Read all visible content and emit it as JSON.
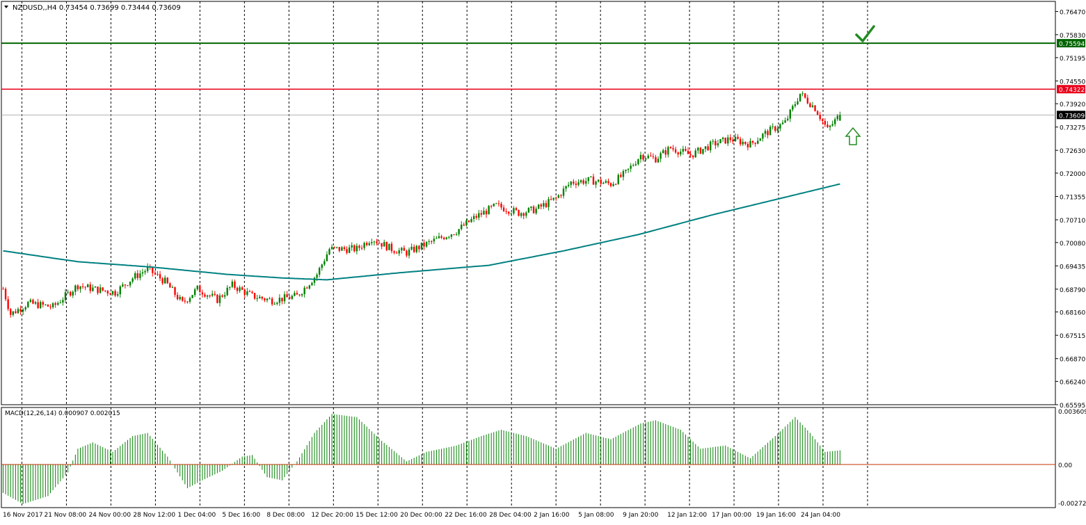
{
  "header": {
    "symbol_line": "NZDUSD,,H4  0.73454 0.73699 0.73444 0.73609"
  },
  "macd": {
    "label": "MACD(12,26,14) 0.000907 0.002015"
  },
  "colors": {
    "bull": "#008000",
    "bear": "#ff0000",
    "ma": "#008080",
    "resistance": "#e8001a",
    "target": "#006400",
    "grid": "#000000",
    "annotation": "#228b22"
  },
  "annotations": {
    "check_icon": "checkmark-icon",
    "arrow_icon": "up-arrow-icon"
  },
  "chart_data": [
    {
      "type": "candlestick",
      "symbol": "NZDUSD",
      "timeframe": "H4",
      "title": "NZDUSD,,H4",
      "ohlc_last": {
        "open": 0.73454,
        "high": 0.73699,
        "low": 0.73444,
        "close": 0.73609
      },
      "ylim": [
        0.65595,
        0.7675
      ],
      "y_ticks": [
        "0.76470",
        "0.75830",
        "0.75195",
        "0.74550",
        "0.73920",
        "0.73275",
        "0.72630",
        "0.72000",
        "0.71355",
        "0.70710",
        "0.70080",
        "0.69435",
        "0.68790",
        "0.68160",
        "0.67515",
        "0.66870",
        "0.66240",
        "0.65595"
      ],
      "x_labels": [
        "16 Nov 2017",
        "21 Nov 08:00",
        "24 Nov 00:00",
        "28 Nov 12:00",
        "1 Dec 04:00",
        "5 Dec 16:00",
        "8 Dec 08:00",
        "12 Dec 20:00",
        "15 Dec 12:00",
        "20 Dec 00:00",
        "22 Dec 16:00",
        "28 Dec 04:00",
        "2 Jan 16:00",
        "5 Jan 08:00",
        "9 Jan 20:00",
        "12 Jan 12:00",
        "17 Jan 00:00",
        "19 Jan 16:00",
        "24 Jan 04:00"
      ],
      "price_path": [
        [
          0,
          0.688
        ],
        [
          3,
          0.681
        ],
        [
          10,
          0.684
        ],
        [
          20,
          0.683
        ],
        [
          30,
          0.689
        ],
        [
          36,
          0.688
        ],
        [
          45,
          0.687
        ],
        [
          52,
          0.691
        ],
        [
          58,
          0.6935
        ],
        [
          65,
          0.69
        ],
        [
          72,
          0.684
        ],
        [
          78,
          0.688
        ],
        [
          86,
          0.685
        ],
        [
          92,
          0.689
        ],
        [
          100,
          0.686
        ],
        [
          108,
          0.6848
        ],
        [
          118,
          0.686
        ],
        [
          126,
          0.692
        ],
        [
          131,
          0.699
        ],
        [
          142,
          0.699
        ],
        [
          148,
          0.702
        ],
        [
          156,
          0.699
        ],
        [
          162,
          0.698
        ],
        [
          172,
          0.701
        ],
        [
          182,
          0.704
        ],
        [
          190,
          0.708
        ],
        [
          198,
          0.711
        ],
        [
          207,
          0.709
        ],
        [
          214,
          0.71
        ],
        [
          222,
          0.713
        ],
        [
          228,
          0.7175
        ],
        [
          236,
          0.718
        ],
        [
          244,
          0.717
        ],
        [
          250,
          0.72
        ],
        [
          256,
          0.725
        ],
        [
          262,
          0.724
        ],
        [
          268,
          0.727
        ],
        [
          276,
          0.725
        ],
        [
          285,
          0.728
        ],
        [
          292,
          0.7295
        ],
        [
          300,
          0.728
        ],
        [
          306,
          0.731
        ],
        [
          314,
          0.734
        ],
        [
          320,
          0.742
        ],
        [
          326,
          0.738
        ],
        [
          331,
          0.732
        ],
        [
          336,
          0.7361
        ]
      ],
      "ma_path": [
        [
          0,
          0.6985
        ],
        [
          30,
          0.6955
        ],
        [
          60,
          0.694
        ],
        [
          90,
          0.692
        ],
        [
          112,
          0.691
        ],
        [
          130,
          0.6905
        ],
        [
          160,
          0.6925
        ],
        [
          195,
          0.6945
        ],
        [
          225,
          0.6985
        ],
        [
          255,
          0.703
        ],
        [
          285,
          0.7085
        ],
        [
          315,
          0.7135
        ],
        [
          336,
          0.717
        ]
      ],
      "bar_count": 337,
      "horizontal_levels": [
        {
          "value": 0.74322,
          "label": "0.74322",
          "role": "resistance"
        },
        {
          "value": 0.75594,
          "label": "0.75594",
          "role": "target"
        },
        {
          "value": 0.73609,
          "label": "0.73609",
          "role": "current"
        }
      ]
    },
    {
      "type": "histogram",
      "title": "MACD(12,26,14)",
      "values_text": [
        "0.000907",
        "0.002015"
      ],
      "ylim": [
        -0.002728,
        0.003609
      ],
      "y_ticks": [
        "0.003609",
        "0.00",
        "-0.002728"
      ],
      "histogram_path": [
        [
          0,
          -0.0018
        ],
        [
          8,
          -0.0025
        ],
        [
          18,
          -0.002
        ],
        [
          26,
          -0.0005
        ],
        [
          30,
          0.001
        ],
        [
          36,
          0.0014
        ],
        [
          44,
          0.0008
        ],
        [
          52,
          0.0018
        ],
        [
          58,
          0.002
        ],
        [
          66,
          0.0005
        ],
        [
          74,
          -0.0015
        ],
        [
          80,
          -0.001
        ],
        [
          88,
          -0.0004
        ],
        [
          96,
          0.0005
        ],
        [
          100,
          0.0006
        ],
        [
          106,
          -0.0008
        ],
        [
          112,
          -0.001
        ],
        [
          118,
          0.0002
        ],
        [
          125,
          0.002
        ],
        [
          132,
          0.0032
        ],
        [
          142,
          0.003
        ],
        [
          152,
          0.0015
        ],
        [
          162,
          0.0002
        ],
        [
          170,
          0.0008
        ],
        [
          182,
          0.0012
        ],
        [
          192,
          0.0018
        ],
        [
          200,
          0.0022
        ],
        [
          210,
          0.0018
        ],
        [
          222,
          0.001
        ],
        [
          234,
          0.002
        ],
        [
          244,
          0.0016
        ],
        [
          256,
          0.0026
        ],
        [
          262,
          0.0028
        ],
        [
          272,
          0.0022
        ],
        [
          280,
          0.001
        ],
        [
          290,
          0.0012
        ],
        [
          300,
          0.0004
        ],
        [
          310,
          0.0018
        ],
        [
          318,
          0.003
        ],
        [
          324,
          0.002
        ],
        [
          330,
          0.0008
        ],
        [
          336,
          0.0009
        ]
      ]
    }
  ]
}
